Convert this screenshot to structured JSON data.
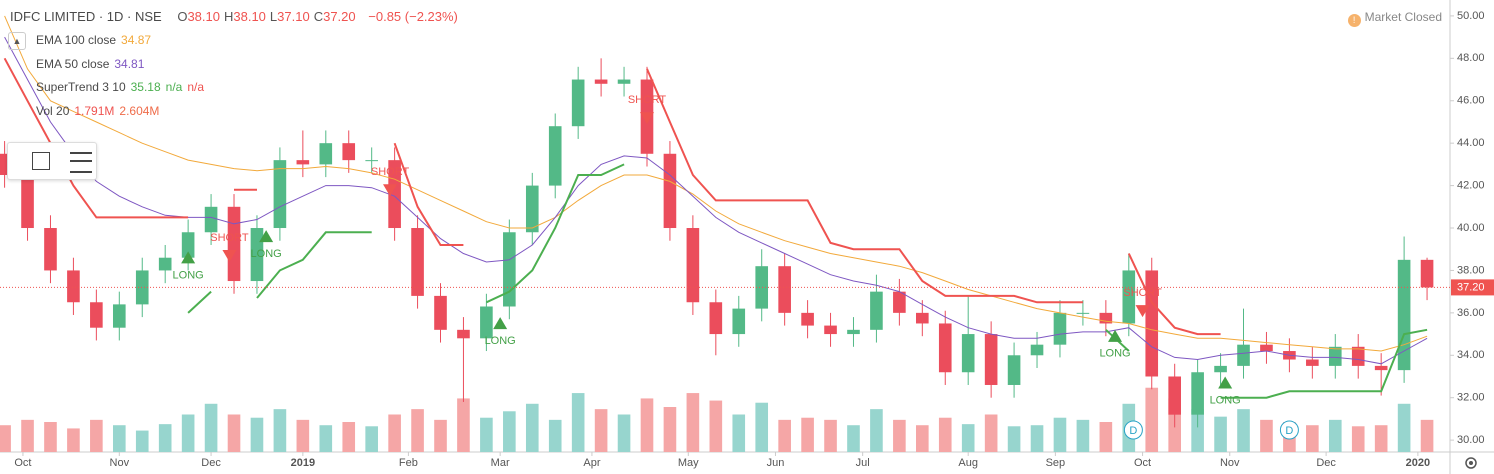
{
  "header": {
    "symbol": "IDFC LIMITED · 1D · NSE",
    "ohlc": [
      {
        "label": "O",
        "value": "38.10"
      },
      {
        "label": "H",
        "value": "38.10"
      },
      {
        "label": "L",
        "value": "37.10"
      },
      {
        "label": "C",
        "value": "37.20"
      }
    ],
    "change": "−0.85 (−2.23%)",
    "status": "Market Closed"
  },
  "indicators": [
    {
      "name": "EMA 100 close",
      "values": [
        "34.87"
      ],
      "colors": [
        "#f2a93b"
      ]
    },
    {
      "name": "EMA 50 close",
      "values": [
        "34.81"
      ],
      "colors": [
        "#7e57c2"
      ]
    },
    {
      "name": "SuperTrend 3 10",
      "values": [
        "35.18",
        "n/a",
        "n/a"
      ],
      "colors": [
        "#4caf50",
        "#4caf50",
        "#ef5350"
      ]
    },
    {
      "name": "Vol 20",
      "values": [
        "1.791M",
        "2.604M"
      ],
      "colors": [
        "#ef5350",
        "#ef6c4a"
      ]
    }
  ],
  "chart_data": {
    "type": "candlestick",
    "x": [
      0,
      5,
      10,
      15,
      20,
      25,
      30,
      35,
      40,
      45,
      50,
      55,
      60,
      65,
      70,
      75,
      80,
      85,
      90,
      95,
      100,
      105,
      110,
      115,
      120,
      125,
      130,
      135,
      140,
      145,
      150,
      155,
      160,
      165,
      170,
      175,
      180,
      185,
      190,
      195,
      200,
      205,
      210,
      215,
      220,
      225,
      230,
      235,
      240,
      245,
      250,
      255,
      260,
      265,
      270,
      275,
      280,
      285,
      290,
      295,
      300,
      305,
      310
    ],
    "open": [
      43.5,
      42.5,
      40,
      38,
      36.5,
      35.3,
      36.4,
      38,
      38.6,
      39.8,
      41,
      37.5,
      40,
      43.2,
      43,
      44,
      43.2,
      43.2,
      40,
      36.8,
      35.2,
      34.8,
      36.3,
      39.8,
      42,
      44.8,
      47,
      46.8,
      47,
      43.5,
      40,
      36.5,
      35,
      36.2,
      38.2,
      36,
      35.4,
      35,
      35.2,
      37,
      36,
      35.5,
      33.2,
      35,
      32.6,
      34,
      34.5,
      36,
      36,
      35.5,
      38,
      33,
      31.2,
      33.2,
      33.5,
      34.5,
      34.2,
      33.8,
      33.5,
      34.4,
      33.5,
      33.3,
      38.5
    ],
    "high": [
      44.1,
      43.1,
      40.6,
      38.6,
      37.1,
      37,
      38.6,
      39.2,
      40.4,
      41.6,
      41.6,
      40.6,
      43.8,
      44.6,
      44.6,
      44.6,
      43.8,
      43.8,
      40.6,
      37.4,
      35.8,
      36.9,
      40.4,
      42.6,
      45.4,
      47.6,
      48,
      47.6,
      47.6,
      44.1,
      40.6,
      37.1,
      36.8,
      39,
      38.8,
      36.6,
      36,
      35.8,
      37.8,
      37.6,
      36.6,
      36.1,
      36.8,
      35.6,
      34.6,
      35.1,
      36.6,
      36.6,
      36.6,
      38.8,
      38.6,
      33.6,
      33.8,
      34.1,
      36.2,
      35.1,
      34.8,
      34.4,
      35,
      35,
      34.1,
      39.6,
      38.6
    ],
    "low": [
      41.9,
      39.4,
      37.4,
      35.9,
      34.7,
      34.7,
      35.8,
      37.4,
      38,
      39.2,
      36.9,
      36.9,
      39.4,
      42.4,
      42.4,
      42.6,
      42.6,
      39.4,
      36.2,
      34.6,
      31.8,
      34.2,
      35.7,
      39.2,
      41.4,
      44.2,
      46.2,
      46.2,
      42.9,
      39.4,
      35.9,
      34,
      34.4,
      35.6,
      35.4,
      34.8,
      34.4,
      34.4,
      34.6,
      35.4,
      34.9,
      32.6,
      32.6,
      32,
      32,
      33.4,
      33.9,
      35.4,
      34.9,
      34.9,
      32.4,
      30.6,
      30.6,
      32.6,
      32.9,
      33.6,
      33.2,
      32.9,
      32.9,
      32.9,
      32.1,
      32.7,
      36.6
    ],
    "close": [
      42.5,
      40,
      38,
      36.5,
      35.3,
      36.4,
      38,
      38.6,
      39.8,
      41,
      37.5,
      40,
      43.2,
      43,
      44,
      43.2,
      43.2,
      40,
      36.8,
      35.2,
      34.8,
      36.3,
      39.8,
      42,
      44.8,
      47,
      46.8,
      47,
      43.5,
      40,
      36.5,
      35,
      36.2,
      38.2,
      36,
      35.4,
      35,
      35.2,
      37,
      36,
      35.5,
      33.2,
      35,
      32.6,
      34,
      34.5,
      36,
      36,
      35.5,
      38,
      33,
      31.2,
      33.2,
      33.5,
      34.5,
      34.2,
      33.8,
      33.5,
      34.4,
      33.5,
      33.3,
      38.5,
      37.2
    ],
    "volume": [
      2.5,
      3,
      2.8,
      2.2,
      3,
      2.5,
      2,
      2.6,
      3.5,
      4.5,
      3.5,
      3.2,
      4,
      3,
      2.5,
      2.8,
      2.4,
      3.5,
      4,
      3,
      5,
      3.2,
      3.8,
      4.5,
      3,
      5.5,
      4,
      3.5,
      5,
      4.2,
      5.5,
      4.8,
      3.5,
      4.6,
      3,
      3.2,
      3,
      2.5,
      4,
      3,
      2.5,
      3.2,
      2.6,
      3.5,
      2.4,
      2.5,
      3.2,
      3,
      2.8,
      4.5,
      6,
      5,
      4,
      3.3,
      4,
      3,
      2.8,
      2.5,
      3,
      2.4,
      2.5,
      4.5,
      3
    ],
    "up_color": "#53b987",
    "down_color": "#eb4d5c",
    "volume_up_color": "#97d5ce",
    "volume_down_color": "#f5a6a6",
    "volume_lim": [
      0,
      14
    ],
    "ema100": [
      50,
      47.5,
      46,
      45.5,
      45,
      44.5,
      44,
      43.6,
      43.2,
      43,
      42.8,
      42.7,
      42.8,
      42.8,
      42.9,
      42.8,
      42.6,
      42.3,
      41.8,
      41.3,
      40.8,
      40.3,
      40,
      40,
      40.5,
      41.3,
      42,
      42.5,
      42.5,
      42.2,
      41.6,
      40.8,
      40.2,
      39.8,
      39.4,
      39.1,
      38.8,
      38.6,
      38.4,
      38.2,
      37.9,
      37.5,
      37.1,
      36.8,
      36.5,
      36.2,
      36,
      35.8,
      35.6,
      35.5,
      35.2,
      35,
      34.8,
      34.8,
      34.7,
      34.6,
      34.5,
      34.4,
      34.3,
      34.3,
      34.2,
      34.5,
      34.9
    ],
    "ema50": [
      49,
      47,
      45,
      43.5,
      42.2,
      41.5,
      41,
      40.6,
      40.5,
      40.5,
      40.2,
      40.4,
      41,
      41.5,
      42,
      42,
      41.9,
      41.5,
      40.5,
      39.5,
      38.8,
      38.4,
      38.5,
      39.2,
      40.5,
      42,
      43,
      43.4,
      43.3,
      42.5,
      41.5,
      40.5,
      39.8,
      39.3,
      38.8,
      38.3,
      37.8,
      37.5,
      37.3,
      37,
      36.4,
      35.8,
      35.3,
      35,
      34.8,
      34.8,
      35,
      35.1,
      35.1,
      35.3,
      34.4,
      33.9,
      33.8,
      34,
      34.1,
      34.2,
      34,
      33.9,
      33.9,
      33.8,
      33.6,
      34.2,
      34.8
    ],
    "supertrend_down": [
      48,
      46,
      44,
      42,
      40.5,
      40.5,
      40.5,
      40.5,
      40.5,
      null,
      41.8,
      41.8,
      null,
      null,
      null,
      null,
      null,
      44,
      41,
      39.2,
      39.2,
      null,
      null,
      null,
      null,
      null,
      null,
      null,
      47.5,
      45,
      42.5,
      41.3,
      41.3,
      41.3,
      41.3,
      41.3,
      39.3,
      39,
      39,
      39,
      37.5,
      36.8,
      36.8,
      36.8,
      36.8,
      36.5,
      36.5,
      36.5,
      null,
      38.8,
      36.5,
      35.3,
      35,
      35,
      null,
      null,
      null,
      null,
      null,
      null,
      null,
      null,
      null
    ],
    "supertrend_up": [
      null,
      null,
      null,
      null,
      null,
      null,
      null,
      null,
      36,
      37,
      null,
      36.7,
      38,
      38.5,
      39.8,
      39.8,
      39.8,
      null,
      null,
      null,
      null,
      36.5,
      37,
      38,
      40,
      42.5,
      42.5,
      43,
      null,
      null,
      null,
      null,
      null,
      null,
      null,
      null,
      null,
      null,
      null,
      null,
      null,
      null,
      null,
      null,
      null,
      null,
      null,
      null,
      35.2,
      34.2,
      null,
      null,
      null,
      32,
      32,
      32,
      32.3,
      32.3,
      32.3,
      32.3,
      32.3,
      35,
      35.2
    ],
    "ema100_color": "#f2a93b",
    "ema50_color": "#7e57c2",
    "supertrend_down_color": "#ef5350",
    "supertrend_up_color": "#4caf50",
    "signals": [
      {
        "label": "LONG",
        "x": 40,
        "price": 38.9
      },
      {
        "label": "SHORT",
        "x": 49,
        "price": 38.4
      },
      {
        "label": "LONG",
        "x": 57,
        "price": 39.9
      },
      {
        "label": "SHORT",
        "x": 84,
        "price": 41.5
      },
      {
        "label": "LONG",
        "x": 108,
        "price": 35.8
      },
      {
        "label": "SHORT",
        "x": 140,
        "price": 44.9
      },
      {
        "label": "LONG",
        "x": 242,
        "price": 35.2
      },
      {
        "label": "SHORT",
        "x": 248,
        "price": 35.8
      },
      {
        "label": "LONG",
        "x": 266,
        "price": 33
      }
    ],
    "dividends": [
      {
        "label": "D",
        "x": 246
      },
      {
        "label": "D",
        "x": 280
      }
    ],
    "last_price": {
      "value": 37.2,
      "label": "37.20"
    },
    "xlim": [
      -1,
      315
    ],
    "ylim": [
      29.44,
      50.75
    ],
    "xticks": [
      {
        "value": 4,
        "label": "Oct"
      },
      {
        "value": 25,
        "label": "Nov"
      },
      {
        "value": 45,
        "label": "Dec"
      },
      {
        "value": 65,
        "label": "2019"
      },
      {
        "value": 88,
        "label": "Feb"
      },
      {
        "value": 108,
        "label": "Mar"
      },
      {
        "value": 128,
        "label": "Apr"
      },
      {
        "value": 149,
        "label": "May"
      },
      {
        "value": 168,
        "label": "Jun"
      },
      {
        "value": 187,
        "label": "Jul"
      },
      {
        "value": 210,
        "label": "Aug"
      },
      {
        "value": 229,
        "label": "Sep"
      },
      {
        "value": 248,
        "label": "Oct"
      },
      {
        "value": 267,
        "label": "Nov"
      },
      {
        "value": 288,
        "label": "Dec"
      },
      {
        "value": 308,
        "label": "2020"
      }
    ],
    "yticks": [
      {
        "value": 30,
        "label": "30.00"
      },
      {
        "value": 32,
        "label": "32.00"
      },
      {
        "value": 34,
        "label": "34.00"
      },
      {
        "value": 36,
        "label": "36.00"
      },
      {
        "value": 38,
        "label": "38.00"
      },
      {
        "value": 40,
        "label": "40.00"
      },
      {
        "value": 42,
        "label": "42.00"
      },
      {
        "value": 44,
        "label": "44.00"
      },
      {
        "value": 46,
        "label": "46.00"
      },
      {
        "value": 48,
        "label": "48.00"
      },
      {
        "value": 50,
        "label": "50.00"
      }
    ],
    "grid": false
  }
}
